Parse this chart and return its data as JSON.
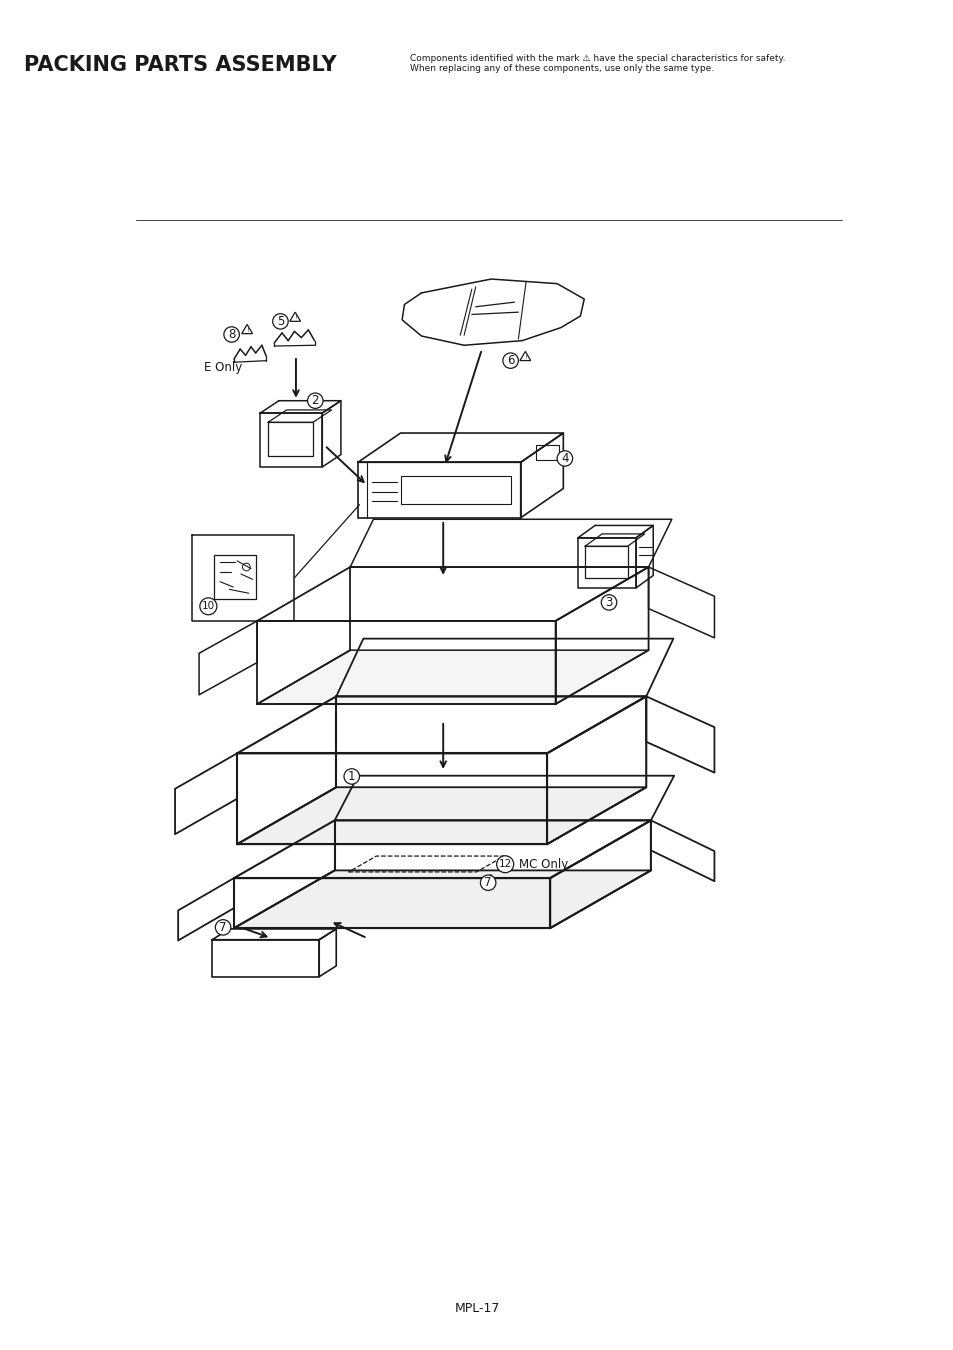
{
  "title": "PACKING PARTS ASSEMBLY",
  "title_fontsize": 15,
  "title_fontweight": "bold",
  "safety_note_line1": "Components identified with the mark ⚠ have the special characteristics for safety.",
  "safety_note_line2": "When replacing any of these components, use only the same type.",
  "footer_text": "MPL-17",
  "bg_color": "#ffffff",
  "line_color": "#1a1a1a"
}
